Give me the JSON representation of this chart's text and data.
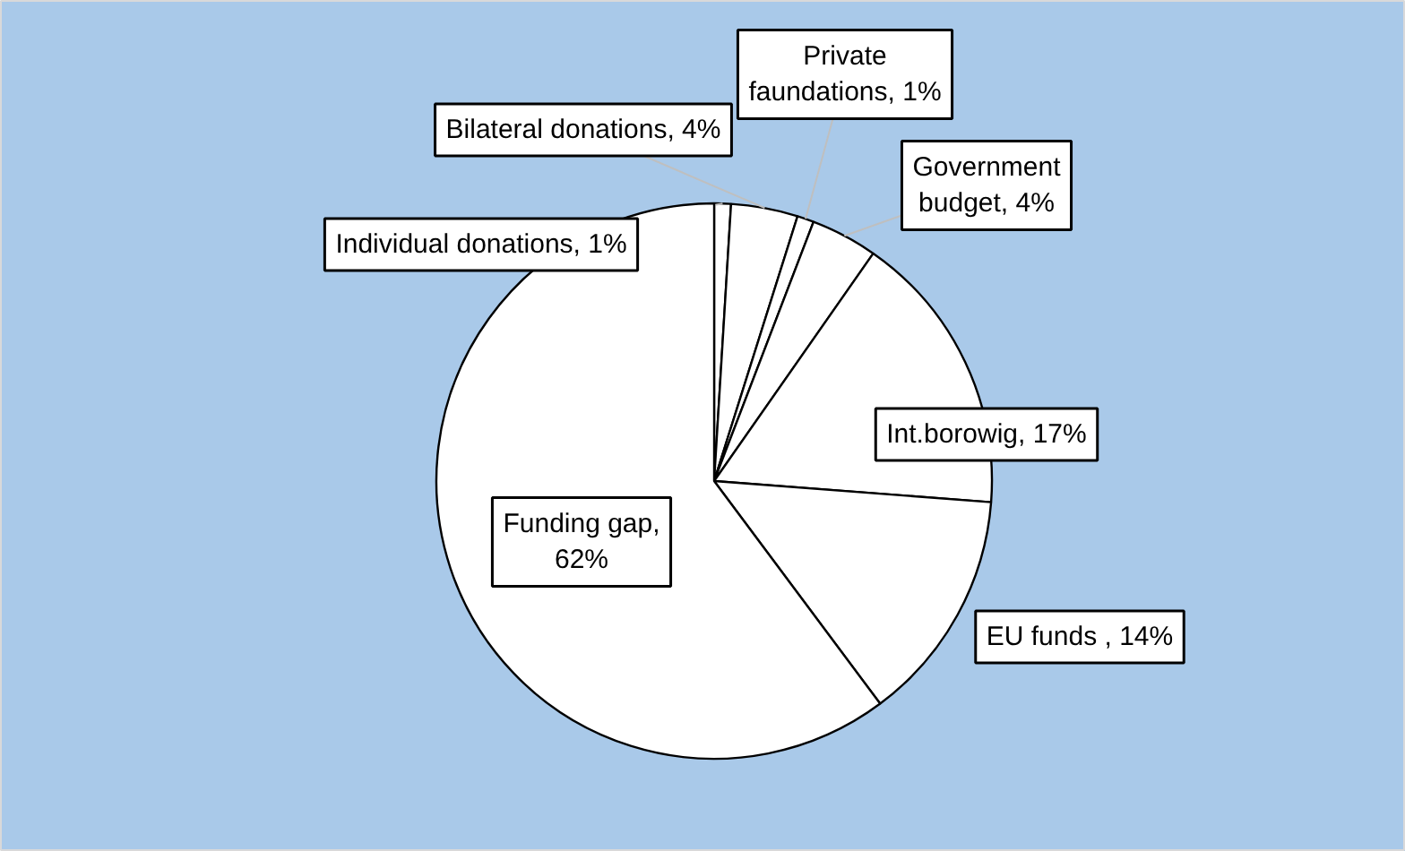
{
  "chart_data": {
    "type": "pie",
    "categories": [
      "Individual donations, 1%",
      "Bilateral donations, 4%",
      "Private faundations, 1%",
      "Government budget, 4%",
      "Int.borowig, 17%",
      "EU funds , 14%",
      "Funding gap, 62%"
    ],
    "values": [
      1,
      4,
      1,
      4,
      17,
      14,
      62
    ],
    "colors": [
      "#ffffff",
      "#ffffff",
      "#ffffff",
      "#ffffff",
      "#ffffff",
      "#ffffff",
      "#ffffff"
    ]
  }
}
